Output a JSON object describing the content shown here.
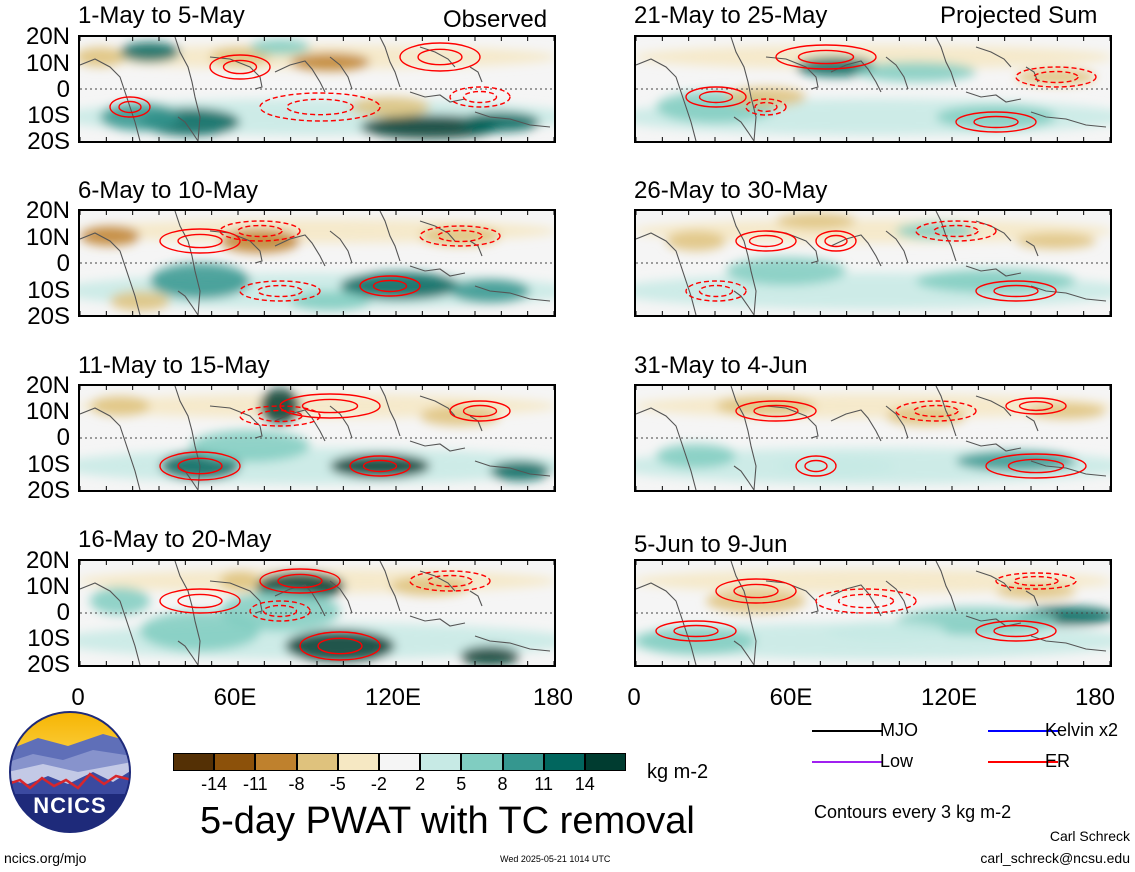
{
  "headers": {
    "observed": "Observed",
    "projected": "Projected Sum"
  },
  "panels": [
    {
      "title": "1-May to 5-May"
    },
    {
      "title": "6-May to 10-May"
    },
    {
      "title": "11-May to 15-May"
    },
    {
      "title": "16-May to 20-May"
    },
    {
      "title": "21-May to 25-May"
    },
    {
      "title": "26-May to 30-May"
    },
    {
      "title": "31-May to 4-Jun"
    },
    {
      "title": "5-Jun to 9-Jun"
    }
  ],
  "lat_labels": [
    "20N",
    "10N",
    "0",
    "10S",
    "20S"
  ],
  "lon_labels": [
    "0",
    "60E",
    "120E",
    "180"
  ],
  "colorbar": {
    "colors": [
      "#543005",
      "#8c510a",
      "#bf812d",
      "#dfc27d",
      "#f6e8c3",
      "#f5f5f5",
      "#c7eae5",
      "#80cdc1",
      "#35978f",
      "#01665e",
      "#003c30"
    ],
    "ticks": [
      "-14",
      "-11",
      "-8",
      "-5",
      "-2",
      "2",
      "5",
      "8",
      "11",
      "14"
    ],
    "units": "kg m-2"
  },
  "legend": {
    "items": [
      {
        "label": "MJO",
        "color": "#000000"
      },
      {
        "label": "Kelvin x2",
        "color": "#0000ff"
      },
      {
        "label": "Low",
        "color": "#a020f0"
      },
      {
        "label": "ER",
        "color": "#ff0000"
      }
    ],
    "contour_note": "Contours every 3 kg m-2"
  },
  "footer": {
    "main_title": "5-day PWAT with TC removal",
    "logo_text": "NCICS",
    "site": "ncics.org/mjo",
    "timestamp": "Wed 2025-05-21 1014 UTC",
    "author": "Carl Schreck",
    "email": "carl_schreck@ncsu.edu"
  }
}
